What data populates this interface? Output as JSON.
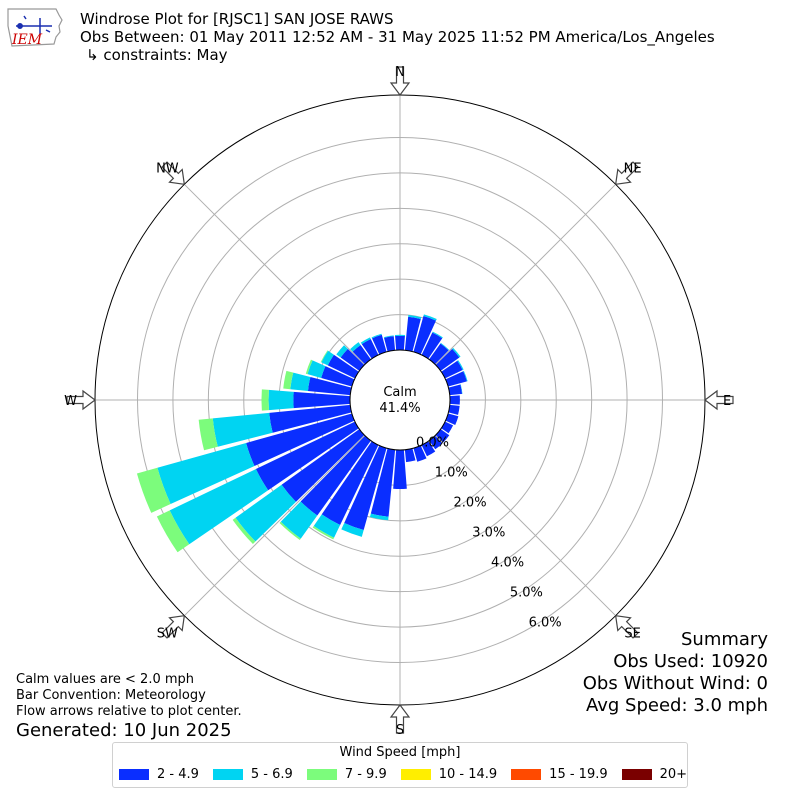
{
  "header": {
    "title": "Windrose Plot for [RJSC1] SAN JOSE RAWS",
    "period": "Obs Between: 01 May 2011 12:52 AM - 31 May 2025 11:52 PM America/Los_Angeles",
    "constraints": "↳ constraints: May"
  },
  "logo": {
    "text": "IEM",
    "icon": "iowa-state-outline-icon",
    "color": "#cc0000"
  },
  "chart_data": {
    "type": "windrose",
    "calm_label": "Calm",
    "calm_percent": "41.4%",
    "radial_ticks": [
      {
        "value": 0,
        "label": "0.0%"
      },
      {
        "value": 1,
        "label": "1.0%"
      },
      {
        "value": 2,
        "label": "2.0%"
      },
      {
        "value": 3,
        "label": "3.0%"
      },
      {
        "value": 4,
        "label": "4.0%"
      },
      {
        "value": 5,
        "label": "5.0%"
      },
      {
        "value": 6,
        "label": "6.0%"
      }
    ],
    "rmax": 7.2,
    "directions": [
      {
        "label": "N",
        "deg": 0
      },
      {
        "label": "NE",
        "deg": 45
      },
      {
        "label": "E",
        "deg": 90
      },
      {
        "label": "SE",
        "deg": 135
      },
      {
        "label": "S",
        "deg": 180
      },
      {
        "label": "SW",
        "deg": 225
      },
      {
        "label": "W",
        "deg": 270
      },
      {
        "label": "NW",
        "deg": 315
      }
    ],
    "bin_names": [
      "2 - 4.9",
      "5 - 6.9",
      "7 - 9.9",
      "10 - 14.9",
      "15 - 19.9",
      "20+"
    ],
    "bin_colors": [
      "#0a2eff",
      "#00d4f2",
      "#7cfc7c",
      "#ffee00",
      "#ff4a00",
      "#7a0000"
    ],
    "sector_width_deg": 10,
    "sectors": [
      {
        "dir": 0,
        "values": [
          0.4,
          0.03,
          0,
          0,
          0,
          0
        ]
      },
      {
        "dir": 10,
        "values": [
          0.95,
          0.05,
          0,
          0,
          0,
          0
        ]
      },
      {
        "dir": 20,
        "values": [
          1.05,
          0.05,
          0,
          0,
          0,
          0
        ]
      },
      {
        "dir": 30,
        "values": [
          0.7,
          0.03,
          0,
          0,
          0,
          0
        ]
      },
      {
        "dir": 40,
        "values": [
          0.55,
          0.02,
          0,
          0,
          0,
          0
        ]
      },
      {
        "dir": 50,
        "values": [
          0.65,
          0.04,
          0,
          0,
          0,
          0
        ]
      },
      {
        "dir": 60,
        "values": [
          0.55,
          0.03,
          0,
          0,
          0,
          0
        ]
      },
      {
        "dir": 70,
        "values": [
          0.55,
          0.02,
          0,
          0,
          0,
          0
        ]
      },
      {
        "dir": 80,
        "values": [
          0.35,
          0.01,
          0,
          0,
          0,
          0
        ]
      },
      {
        "dir": 90,
        "values": [
          0.28,
          0,
          0,
          0,
          0,
          0
        ]
      },
      {
        "dir": 100,
        "values": [
          0.28,
          0,
          0,
          0,
          0,
          0
        ]
      },
      {
        "dir": 110,
        "values": [
          0.3,
          0,
          0,
          0,
          0,
          0
        ]
      },
      {
        "dir": 120,
        "values": [
          0.25,
          0,
          0,
          0,
          0,
          0
        ]
      },
      {
        "dir": 130,
        "values": [
          0.3,
          0,
          0,
          0,
          0,
          0
        ]
      },
      {
        "dir": 140,
        "values": [
          0.3,
          0,
          0,
          0,
          0,
          0
        ]
      },
      {
        "dir": 150,
        "values": [
          0.35,
          0,
          0,
          0,
          0,
          0
        ]
      },
      {
        "dir": 160,
        "values": [
          0.4,
          0,
          0,
          0,
          0,
          0
        ]
      },
      {
        "dir": 170,
        "values": [
          0.35,
          0,
          0,
          0,
          0,
          0
        ]
      },
      {
        "dir": 180,
        "values": [
          1.1,
          0,
          0,
          0,
          0,
          0
        ]
      },
      {
        "dir": 190,
        "values": [
          1.9,
          0.1,
          0,
          0,
          0,
          0
        ]
      },
      {
        "dir": 200,
        "values": [
          2.4,
          0.2,
          0,
          0,
          0,
          0
        ]
      },
      {
        "dir": 210,
        "values": [
          2.5,
          0.4,
          0.05,
          0,
          0,
          0
        ]
      },
      {
        "dir": 220,
        "values": [
          2.6,
          0.8,
          0.05,
          0,
          0,
          0
        ]
      },
      {
        "dir": 230,
        "values": [
          2.7,
          1.6,
          0.1,
          0,
          0,
          0
        ]
      },
      {
        "dir": 240,
        "values": [
          3.1,
          2.7,
          0.4,
          0,
          0,
          0
        ]
      },
      {
        "dir": 250,
        "values": [
          3.1,
          2.6,
          0.6,
          0,
          0,
          0
        ]
      },
      {
        "dir": 260,
        "values": [
          2.3,
          1.6,
          0.4,
          0,
          0,
          0
        ]
      },
      {
        "dir": 270,
        "values": [
          1.6,
          0.7,
          0.2,
          0,
          0,
          0
        ]
      },
      {
        "dir": 280,
        "values": [
          1.2,
          0.5,
          0.2,
          0,
          0,
          0
        ]
      },
      {
        "dir": 290,
        "values": [
          0.9,
          0.4,
          0.05,
          0,
          0,
          0
        ]
      },
      {
        "dir": 300,
        "values": [
          0.85,
          0.2,
          0.02,
          0,
          0,
          0
        ]
      },
      {
        "dir": 310,
        "values": [
          0.65,
          0.15,
          0,
          0,
          0,
          0
        ]
      },
      {
        "dir": 320,
        "values": [
          0.5,
          0.1,
          0,
          0,
          0,
          0
        ]
      },
      {
        "dir": 330,
        "values": [
          0.5,
          0.05,
          0,
          0,
          0,
          0
        ]
      },
      {
        "dir": 340,
        "values": [
          0.5,
          0.03,
          0,
          0,
          0,
          0
        ]
      },
      {
        "dir": 350,
        "values": [
          0.4,
          0.02,
          0,
          0,
          0,
          0
        ]
      }
    ]
  },
  "notes": {
    "line1": "Calm values are < 2.0 mph",
    "line2": "Bar Convention: Meteorology",
    "line3": "Flow arrows relative to plot center.",
    "generated": "Generated: 10 Jun 2025"
  },
  "summary": {
    "title": "Summary",
    "obs_used": "Obs Used: 10920",
    "obs_without_wind": "Obs Without Wind: 0",
    "avg_speed": "Avg Speed: 3.0 mph"
  },
  "legend": {
    "title": "Wind Speed [mph]",
    "placement": "bottom-center",
    "items": [
      {
        "label": "2 - 4.9",
        "color": "#0a2eff"
      },
      {
        "label": "5 - 6.9",
        "color": "#00d4f2"
      },
      {
        "label": "7 - 9.9",
        "color": "#7cfc7c"
      },
      {
        "label": "10 - 14.9",
        "color": "#ffee00"
      },
      {
        "label": "15 - 19.9",
        "color": "#ff4a00"
      },
      {
        "label": "20+",
        "color": "#7a0000"
      }
    ]
  }
}
